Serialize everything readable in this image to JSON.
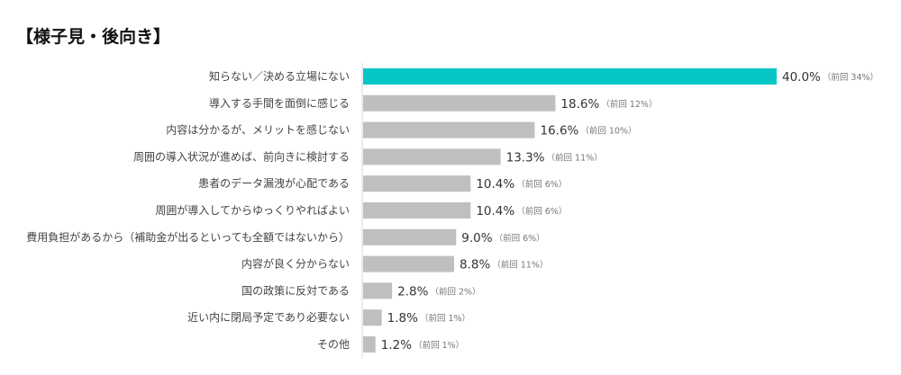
{
  "chart_data": {
    "type": "bar",
    "orientation": "horizontal",
    "title": "【様子見・後向き】",
    "categories": [
      "知らない／決める立場にない",
      "導入する手間を面倒に感じる",
      "内容は分かるが、メリットを感じない",
      "周囲の導入状況が進めば、前向きに検討する",
      "患者のデータ漏洩が心配である",
      "周囲が導入してからゆっくりやればよい",
      "費用負担があるから（補助金が出るといっても全額ではないから）",
      "内容が良く分からない",
      "国の政策に反対である",
      "近い内に閉局予定であり必要ない",
      "その他"
    ],
    "values": [
      40.0,
      18.6,
      16.6,
      13.3,
      10.4,
      10.4,
      9.0,
      8.8,
      2.8,
      1.8,
      1.2
    ],
    "value_labels": [
      "40.0%",
      "18.6%",
      "16.6%",
      "13.3%",
      "10.4%",
      "10.4%",
      "9.0%",
      "8.8%",
      "2.8%",
      "1.8%",
      "1.2%"
    ],
    "previous_labels": [
      "（前回 34%）",
      "（前回 12%）",
      "（前回 10%）",
      "（前回 11%）",
      "（前回 6%）",
      "（前回 6%）",
      "（前回 6%）",
      "（前回 11%）",
      "（前回 2%）",
      "（前回 1%）",
      "（前回 1%）"
    ],
    "xlim": [
      0,
      40
    ],
    "grid": false,
    "colors": {
      "highlight": "#05C6C4",
      "default": "#BFBFBF",
      "axis": "#D9D9D9"
    }
  }
}
